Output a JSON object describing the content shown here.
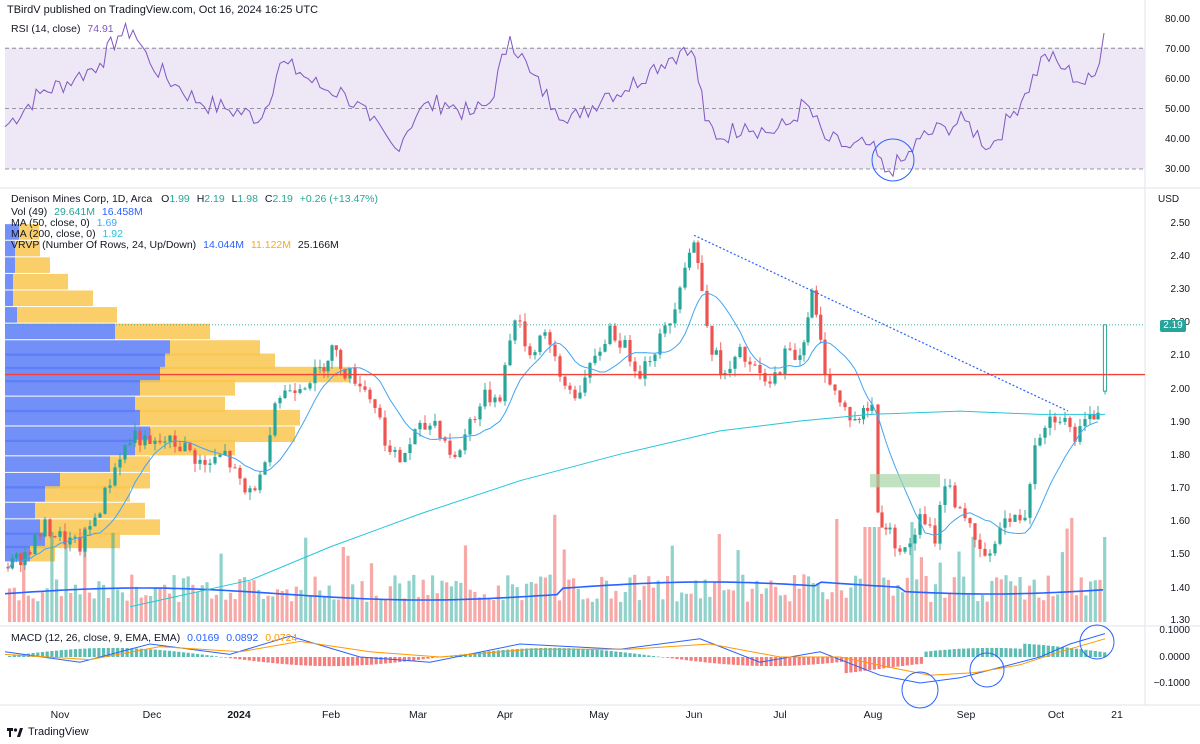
{
  "header": {
    "published": "TBirdV published on TradingView.com, Oct 16, 2024 16:25 UTC"
  },
  "rsi": {
    "label": "RSI (14, close)",
    "value": "74.91",
    "axis": [
      "80.00",
      "70.00",
      "60.00",
      "50.00",
      "40.00",
      "30.00"
    ],
    "line_color": "#7e57c2",
    "band_color": "#ede7f6"
  },
  "main": {
    "symbol": "Denison Mines Corp, 1D, Arca",
    "ohlc": {
      "o_label": "O",
      "o": "1.99",
      "h_label": "H",
      "h": "2.19",
      "l_label": "L",
      "l": "1.98",
      "c_label": "C",
      "c": "2.19",
      "chg": "+0.26 (+13.47%)"
    },
    "vol": {
      "label": "Vol (49)",
      "v1": "29.641M",
      "v2": "16.458M"
    },
    "ma50": {
      "label": "MA (50, close, 0)",
      "value": "1.69",
      "color": "#42a5f5"
    },
    "ma200": {
      "label": "MA (200, close, 0)",
      "value": "1.92",
      "color": "#26c6da"
    },
    "vrvp": {
      "label": "VRVP (Number Of Rows, 24, Up/Down)",
      "up": "14.044M",
      "down": "11.122M",
      "total": "25.166M"
    },
    "currency": "USD",
    "axis": [
      "2.50",
      "2.40",
      "2.30",
      "2.20",
      "2.10",
      "2.00",
      "1.90",
      "1.80",
      "1.70",
      "1.60",
      "1.50",
      "1.40",
      "1.30"
    ],
    "last_price": "2.19",
    "resistance_color": "#f44336"
  },
  "macd": {
    "label": "MACD (12, 26, close, 9, EMA, EMA)",
    "v1": "0.0169",
    "v2": "0.0892",
    "v3": "0.0724",
    "axis": [
      "0.1000",
      "0.0000",
      "−0.1000"
    ]
  },
  "xaxis": [
    "Nov",
    "Dec",
    "2024",
    "Feb",
    "Mar",
    "Apr",
    "May",
    "Jun",
    "Jul",
    "Aug",
    "Sep",
    "Oct",
    "21"
  ],
  "footer": {
    "brand": "TradingView"
  },
  "chart_data": [
    {
      "type": "line",
      "title": "RSI (14, close)",
      "ylim": [
        25,
        80
      ],
      "guides": [
        30,
        50,
        70
      ],
      "x": [
        "Nov",
        "Dec",
        "2024",
        "Feb",
        "Mar",
        "Apr",
        "May",
        "Jun",
        "Jul",
        "Aug",
        "Sep",
        "Oct",
        "Oct 16"
      ],
      "series": [
        {
          "name": "RSI (14, close)",
          "values": [
            45,
            70,
            46,
            60,
            43,
            52,
            62,
            64,
            45,
            37,
            32,
            44,
            74.91
          ]
        }
      ]
    },
    {
      "type": "candlestick",
      "title": "Denison Mines Corp, 1D, Arca",
      "ylabel": "USD",
      "ylim": [
        1.3,
        2.55
      ],
      "x": [
        "Nov",
        "Dec",
        "2024",
        "Feb",
        "Mar",
        "Apr",
        "May",
        "Jun",
        "Jul",
        "Aug",
        "Sep",
        "Oct",
        "Oct 16"
      ],
      "close": [
        1.48,
        1.83,
        1.68,
        2.05,
        1.77,
        2.12,
        2.05,
        2.42,
        2.05,
        1.75,
        1.55,
        1.9,
        2.19
      ],
      "resistance": 2.04,
      "series": [
        {
          "name": "MA (50, close, 0)",
          "last": 1.69
        },
        {
          "name": "MA (200, close, 0)",
          "last": 1.92
        }
      ]
    },
    {
      "type": "line",
      "title": "MACD (12, 26, close, 9, EMA, EMA)",
      "ylim": [
        -0.13,
        0.12
      ],
      "series": [
        {
          "name": "MACD",
          "last": 0.0892
        },
        {
          "name": "Signal",
          "last": 0.0724
        },
        {
          "name": "Histogram",
          "last": 0.0169
        }
      ]
    }
  ]
}
